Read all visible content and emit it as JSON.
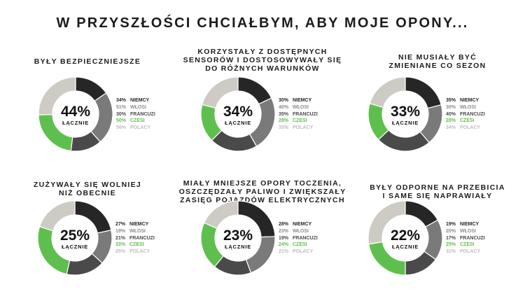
{
  "page_title": "W PRZYSZŁOŚCI CHCIAŁBYM, ABY MOJE OPONY...",
  "colors": {
    "slice_colors": [
      "#262626",
      "#7a7a7a",
      "#4a4a4a",
      "#5fbf4e",
      "#cdcbc3"
    ],
    "legend_colors": [
      "#262626",
      "#8c8c8c",
      "#4a4a4a",
      "#5fbf4e",
      "#bdbdbd"
    ]
  },
  "chart_data": [
    {
      "type": "pie",
      "title_lines": [
        "BYŁY BEZPIECZNIEJSZE"
      ],
      "center_value": "44%",
      "center_label": "ŁĄCZNIE",
      "categories": [
        "NIEMCY",
        "WŁOSI",
        "FRANCUZI",
        "CZESI",
        "POLACY"
      ],
      "value_labels": [
        "34%",
        "51%",
        "30%",
        "50%",
        "56%"
      ],
      "values": [
        34,
        51,
        30,
        50,
        56
      ]
    },
    {
      "type": "pie",
      "title_lines": [
        "KORZYSTAŁY Z DOSTĘPNYCH",
        "SENSORÓW I DOSTOSOWYWAŁY SIĘ",
        "DO RÓŻNYCH WARUNKÓW"
      ],
      "center_value": "34%",
      "center_label": "ŁĄCZNIE",
      "categories": [
        "NIEMCY",
        "WŁOSI",
        "FRANCUZI",
        "CZESI",
        "POLACY"
      ],
      "value_labels": [
        "30%",
        "40%",
        "35%",
        "28%",
        "35%"
      ],
      "values": [
        30,
        40,
        35,
        28,
        35
      ]
    },
    {
      "type": "pie",
      "title_lines": [
        "NIE MUSIAŁY BYĆ",
        "ZMIENIANE CO SEZON"
      ],
      "center_value": "33%",
      "center_label": "ŁĄCZNIE",
      "categories": [
        "NIEMCY",
        "WŁOSI",
        "FRANCUZI",
        "CZESI",
        "POLACY"
      ],
      "value_labels": [
        "35%",
        "30%",
        "40%",
        "28%",
        "34%"
      ],
      "values": [
        35,
        30,
        40,
        28,
        34
      ]
    },
    {
      "type": "pie",
      "title_lines": [
        "ZUŻYWAŁY SIĘ WOLNIEJ",
        "NIŻ OBECNIE"
      ],
      "center_value": "25%",
      "center_label": "ŁĄCZNIE",
      "categories": [
        "NIEMCY",
        "WŁOSI",
        "FRANCUZI",
        "CZESI",
        "POLACY"
      ],
      "value_labels": [
        "27%",
        "19%",
        "21%",
        "33%",
        "25%"
      ],
      "values": [
        27,
        19,
        21,
        33,
        25
      ]
    },
    {
      "type": "pie",
      "title_lines": [
        "MIAŁY MNIEJSZE OPORY TOCZENIA,",
        "OSZCZĘDZAŁY PALIWO I ZWIĘKSZAŁY",
        "ZASIĘG POJAZDÓW ELEKTRYCZNYCH"
      ],
      "center_value": "23%",
      "center_label": "ŁĄCZNIE",
      "categories": [
        "NIEMCY",
        "WŁOSI",
        "FRANCUZI",
        "CZESI",
        "POLACY"
      ],
      "value_labels": [
        "28%",
        "23%",
        "19%",
        "24%",
        "21%"
      ],
      "values": [
        28,
        23,
        19,
        24,
        21
      ]
    },
    {
      "type": "pie",
      "title_lines": [
        "BYŁY ODPORNE NA PRZEBICIA",
        "I SAME SIĘ NAPRAWIAŁY"
      ],
      "center_value": "22%",
      "center_label": "ŁĄCZNIE",
      "categories": [
        "NIEMCY",
        "WŁOSI",
        "FRANCUZI",
        "CZESI",
        "POLACY"
      ],
      "value_labels": [
        "19%",
        "20%",
        "17%",
        "25%",
        "31%"
      ],
      "values": [
        19,
        20,
        17,
        25,
        31
      ]
    }
  ]
}
